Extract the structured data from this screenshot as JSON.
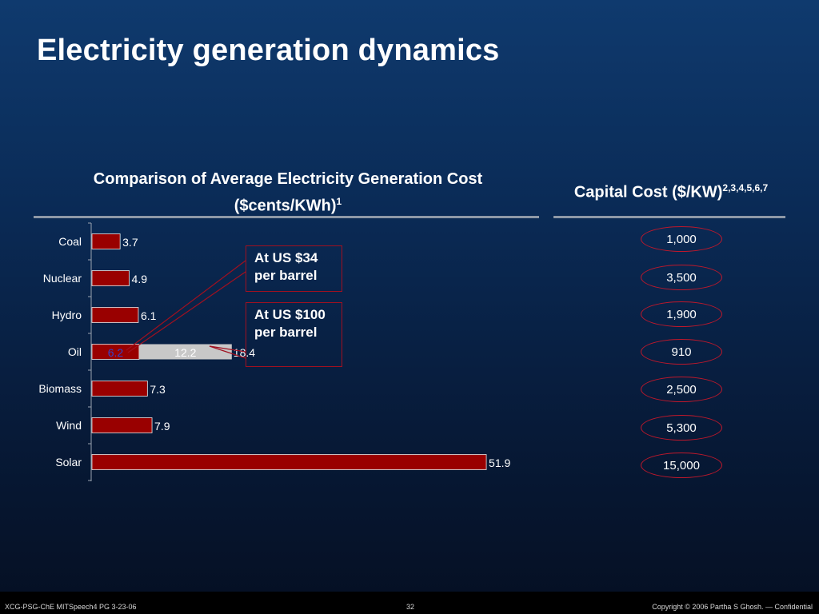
{
  "title": "Electricity generation dynamics",
  "chart_heading": {
    "line1": "Comparison of Average Electricity Generation Cost",
    "line2": "($cents/KWh)",
    "footnote": "1"
  },
  "capital_heading": {
    "text": "Capital Cost ($/KW)",
    "footnote": "2,3,4,5,6,7"
  },
  "chart_data": {
    "type": "bar",
    "orientation": "horizontal",
    "categories": [
      "Coal",
      "Nuclear",
      "Hydro",
      "Oil",
      "Biomass",
      "Wind",
      "Solar"
    ],
    "values": [
      3.7,
      4.9,
      6.1,
      6.2,
      7.3,
      7.9,
      51.9
    ],
    "value_labels": [
      "3.7",
      "4.9",
      "6.1",
      "6.2",
      "7.3",
      "7.9",
      "51.9"
    ],
    "oil_segments": {
      "base": 6.2,
      "base_label": "6.2",
      "increment": 12.2,
      "increment_label": "12.2",
      "total": 18.4,
      "total_label": "18.4"
    },
    "xlim": [
      0,
      52
    ],
    "colors": {
      "bar": "#990000",
      "increment": "#c8c8c8",
      "base_label": "#3344cc"
    }
  },
  "callouts": {
    "oil_34": "At US $34 per barrel",
    "oil_100": "At US $100 per barrel"
  },
  "capital_costs": [
    "1,000",
    "3,500",
    "1,900",
    "910",
    "2,500",
    "5,300",
    "15,000"
  ],
  "footer": {
    "left": "XCG-PSG-ChE MITSpeech4 PG 3-23-06",
    "page": "32",
    "right": "Copyright © 2006 Partha S Ghosh. — Confidential"
  }
}
